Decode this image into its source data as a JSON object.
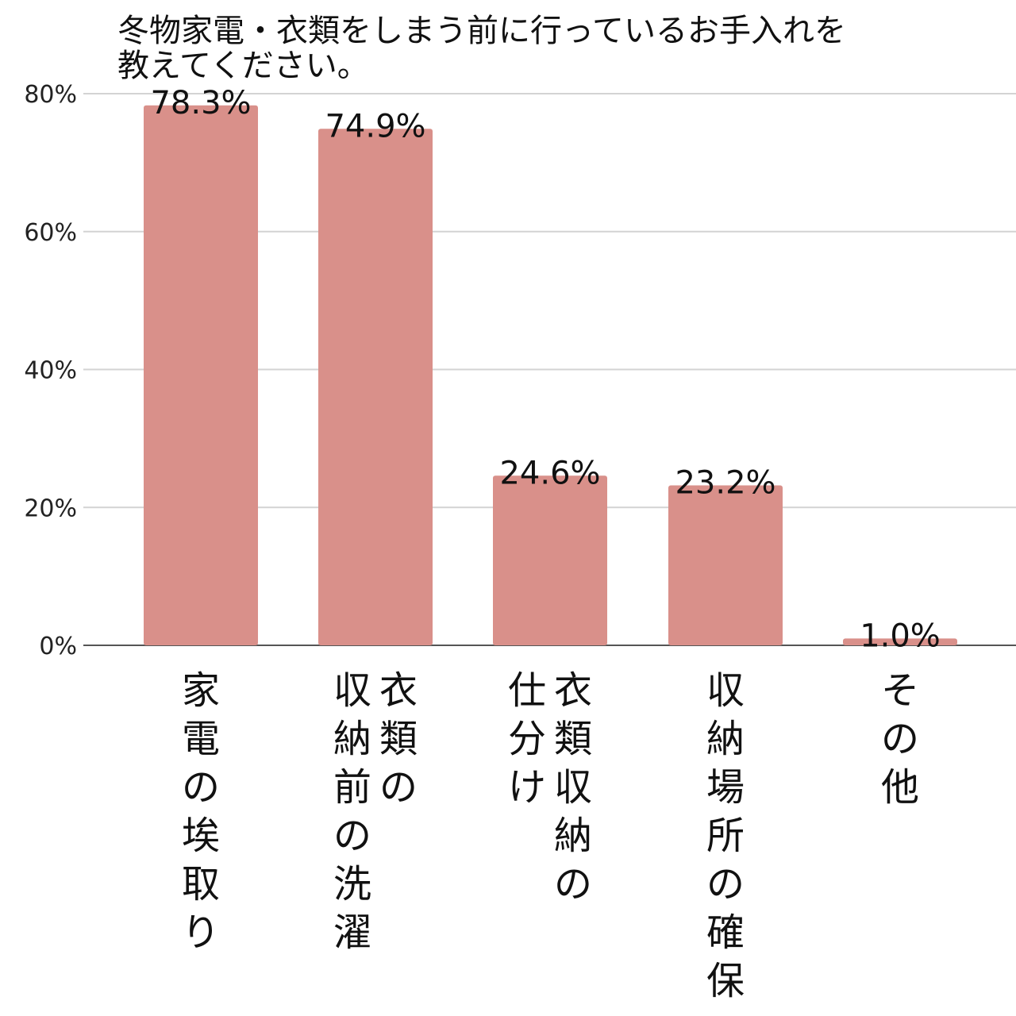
{
  "chart_data": {
    "type": "bar",
    "title_lines": [
      "冬物家電・衣類をしまう前に行っているお手入れを",
      "教えてください。"
    ],
    "categories": [
      [
        "家",
        "電",
        "の",
        "埃",
        "取",
        "り"
      ],
      [
        [
          "衣",
          "類",
          "の"
        ],
        [
          "収",
          "納",
          "前",
          "の",
          "洗",
          "濯"
        ]
      ],
      [
        [
          "衣",
          "類",
          "収",
          "納",
          "の"
        ],
        [
          "仕",
          "分",
          "け"
        ]
      ],
      [
        "収",
        "納",
        "場",
        "所",
        "の",
        "確",
        "保"
      ],
      [
        "そ",
        "の",
        "他"
      ]
    ],
    "values": [
      78.3,
      74.9,
      24.6,
      23.2,
      1.0
    ],
    "value_labels": [
      "78.3%",
      "74.9%",
      "24.6%",
      "23.2%",
      "1.0%"
    ],
    "yticks": [
      0,
      20,
      40,
      60,
      80
    ],
    "ytick_labels": [
      "0%",
      "20%",
      "40%",
      "60%",
      "80%"
    ],
    "ylim": [
      0,
      80
    ],
    "grid": true,
    "bar_color": "#d9908a",
    "xlabel": "",
    "ylabel": ""
  }
}
